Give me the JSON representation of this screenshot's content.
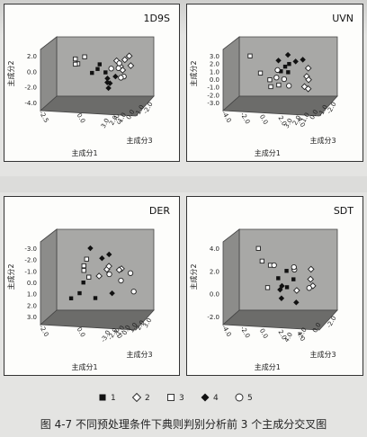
{
  "caption": "图 4-7   不同预处理条件下典则判别分析前 3 个主成分交叉图",
  "legend": [
    {
      "label": "1",
      "marker": "square-filled"
    },
    {
      "label": "2",
      "marker": "diamond-open"
    },
    {
      "label": "3",
      "marker": "square-open"
    },
    {
      "label": "4",
      "marker": "diamond-filled"
    },
    {
      "label": "5",
      "marker": "circle-open"
    }
  ],
  "chart_data": [
    {
      "type": "scatter",
      "title": "1D9S",
      "xlabel": "主成分1",
      "ylabel": "主成分2",
      "zlabel": "主成分3",
      "y_ticks": [
        "2.0",
        "0.0",
        "-2.0",
        "-4.0"
      ],
      "x_ticks": [
        "-2.5",
        "0.0",
        "2.5"
      ],
      "z_ticks": [
        "-2.0",
        "-1.0",
        "0.0",
        "1.0",
        "2.0",
        "3.0"
      ],
      "points": [
        {
          "g": 1,
          "x": -0.5,
          "y": 0.1,
          "z": 0.2
        },
        {
          "g": 1,
          "x": 0.2,
          "y": -0.3,
          "z": 0.5
        },
        {
          "g": 1,
          "x": 0.0,
          "y": 0.6,
          "z": -0.4
        },
        {
          "g": 1,
          "x": -1.0,
          "y": -0.5,
          "z": 0.0
        },
        {
          "g": 2,
          "x": 2.2,
          "y": 1.5,
          "z": 0.6
        },
        {
          "g": 2,
          "x": 2.6,
          "y": 0.8,
          "z": 1.1
        },
        {
          "g": 2,
          "x": 1.8,
          "y": 1.1,
          "z": -0.4
        },
        {
          "g": 2,
          "x": 2.9,
          "y": 1.9,
          "z": 0.1
        },
        {
          "g": 2,
          "x": 1.5,
          "y": 0.3,
          "z": 1.6
        },
        {
          "g": 2,
          "x": 2.4,
          "y": 0.2,
          "z": -0.8
        },
        {
          "g": 3,
          "x": -2.3,
          "y": 1.2,
          "z": -1.0
        },
        {
          "g": 3,
          "x": -1.8,
          "y": 0.4,
          "z": -1.5
        },
        {
          "g": 3,
          "x": -2.9,
          "y": 0.8,
          "z": 0.3
        },
        {
          "g": 3,
          "x": -1.5,
          "y": 1.6,
          "z": -0.6
        },
        {
          "g": 4,
          "x": 0.5,
          "y": -1.2,
          "z": 0.3
        },
        {
          "g": 4,
          "x": 1.0,
          "y": -2.0,
          "z": -0.2
        },
        {
          "g": 4,
          "x": 0.2,
          "y": -1.6,
          "z": 0.9
        },
        {
          "g": 4,
          "x": 1.3,
          "y": -0.9,
          "z": 0.4
        },
        {
          "g": 4,
          "x": 0.7,
          "y": -2.6,
          "z": 0.1
        },
        {
          "g": 5,
          "x": 1.6,
          "y": -0.2,
          "z": -1.2
        },
        {
          "g": 5,
          "x": 2.0,
          "y": -0.8,
          "z": 0.8
        },
        {
          "g": 5,
          "x": 1.2,
          "y": 0.5,
          "z": 1.3
        },
        {
          "g": 5,
          "x": 2.3,
          "y": -1.3,
          "z": -0.5
        },
        {
          "g": 5,
          "x": 1.8,
          "y": 0.9,
          "z": 0.2
        }
      ]
    },
    {
      "type": "scatter",
      "title": "UVN",
      "xlabel": "主成分1",
      "ylabel": "主成分2",
      "zlabel": "主成分3",
      "y_ticks": [
        "3.0",
        "2.0",
        "1.0",
        "0.0",
        "-1.0",
        "-2.0",
        "-3.0"
      ],
      "x_ticks": [
        "-4.0",
        "-2.0",
        "0.0",
        "2.0",
        "4.0"
      ],
      "z_ticks": [
        "-2.0",
        "-1.0",
        "0.0",
        "1.0",
        "2.0",
        "3.0"
      ],
      "points": [
        {
          "g": 1,
          "x": 0.5,
          "y": 0.8,
          "z": 0.1
        },
        {
          "g": 1,
          "x": 1.2,
          "y": 1.1,
          "z": -0.3
        },
        {
          "g": 1,
          "x": -0.3,
          "y": 0.2,
          "z": 0.6
        },
        {
          "g": 1,
          "x": 0.9,
          "y": -0.2,
          "z": 0.0
        },
        {
          "g": 2,
          "x": 2.5,
          "y": -0.6,
          "z": 0.8
        },
        {
          "g": 2,
          "x": 3.1,
          "y": -1.4,
          "z": 0.2
        },
        {
          "g": 2,
          "x": 2.0,
          "y": -2.2,
          "z": 1.2
        },
        {
          "g": 2,
          "x": 3.5,
          "y": 0.3,
          "z": -0.5
        },
        {
          "g": 2,
          "x": 2.8,
          "y": -2.8,
          "z": 0.6
        },
        {
          "g": 3,
          "x": -2.8,
          "y": 2.2,
          "z": -1.0
        },
        {
          "g": 3,
          "x": -1.5,
          "y": -1.3,
          "z": 0.5
        },
        {
          "g": 3,
          "x": -0.8,
          "y": -2.0,
          "z": 1.0
        },
        {
          "g": 3,
          "x": -2.0,
          "y": -0.5,
          "z": -0.4
        },
        {
          "g": 3,
          "x": -1.2,
          "y": -2.6,
          "z": 0.2
        },
        {
          "g": 4,
          "x": 1.0,
          "y": 2.7,
          "z": -0.2
        },
        {
          "g": 4,
          "x": 1.5,
          "y": 1.8,
          "z": 0.4
        },
        {
          "g": 4,
          "x": 0.3,
          "y": 1.5,
          "z": -0.8
        },
        {
          "g": 4,
          "x": 2.0,
          "y": 2.3,
          "z": 0.9
        },
        {
          "g": 5,
          "x": -0.5,
          "y": -0.8,
          "z": 1.5
        },
        {
          "g": 5,
          "x": 0.2,
          "y": -1.5,
          "z": -1.0
        },
        {
          "g": 5,
          "x": -1.0,
          "y": 0.6,
          "z": 1.1
        },
        {
          "g": 5,
          "x": 0.8,
          "y": -2.4,
          "z": 0.3
        }
      ]
    },
    {
      "type": "scatter",
      "title": "DER",
      "xlabel": "主成分1",
      "ylabel": "主成分2",
      "zlabel": "主成分3",
      "y_ticks": [
        "-3.0",
        "-2.0",
        "-1.0",
        "0.0",
        "1.0",
        "2.0",
        "3.0"
      ],
      "x_ticks": [
        "-2.0",
        "0.0",
        "2.0"
      ],
      "z_ticks": [
        "3.0",
        "2.0",
        "1.0",
        "0.0",
        "-1.0",
        "-2.0",
        "-3.0"
      ],
      "points": [
        {
          "g": 1,
          "x": -1.8,
          "y": -1.6,
          "z": 0.5
        },
        {
          "g": 1,
          "x": -1.2,
          "y": -0.8,
          "z": -0.3
        },
        {
          "g": 1,
          "x": -0.5,
          "y": -2.2,
          "z": 0.2
        },
        {
          "g": 1,
          "x": -2.0,
          "y": -2.5,
          "z": -0.6
        },
        {
          "g": 2,
          "x": 0.6,
          "y": 0.5,
          "z": -0.4
        },
        {
          "g": 2,
          "x": 1.3,
          "y": 0.9,
          "z": 0.6
        },
        {
          "g": 2,
          "x": 0.2,
          "y": 1.3,
          "z": 1.0
        },
        {
          "g": 2,
          "x": 1.8,
          "y": 0.2,
          "z": -1.1
        },
        {
          "g": 2,
          "x": -0.3,
          "y": 0.1,
          "z": 0.4
        },
        {
          "g": 3,
          "x": -1.0,
          "y": 1.6,
          "z": -0.2
        },
        {
          "g": 3,
          "x": -1.6,
          "y": 0.8,
          "z": 0.8
        },
        {
          "g": 3,
          "x": -0.4,
          "y": -0.6,
          "z": -1.3
        },
        {
          "g": 3,
          "x": -1.4,
          "y": 1.1,
          "z": 0.3
        },
        {
          "g": 4,
          "x": -0.6,
          "y": 2.6,
          "z": -0.5
        },
        {
          "g": 4,
          "x": -0.2,
          "y": 2.0,
          "z": 0.7
        },
        {
          "g": 4,
          "x": 1.0,
          "y": 1.8,
          "z": -1.0
        },
        {
          "g": 4,
          "x": 0.4,
          "y": -1.4,
          "z": 1.1
        },
        {
          "g": 5,
          "x": 1.5,
          "y": -0.5,
          "z": 0.0
        },
        {
          "g": 5,
          "x": 2.1,
          "y": -1.3,
          "z": 0.9
        },
        {
          "g": 5,
          "x": 0.9,
          "y": -0.1,
          "z": -0.7
        },
        {
          "g": 5,
          "x": 1.7,
          "y": 0.7,
          "z": 1.3
        }
      ]
    },
    {
      "type": "scatter",
      "title": "SDT",
      "xlabel": "主成分1",
      "ylabel": "主成分2",
      "zlabel": "主成分3",
      "y_ticks": [
        "4.0",
        "2.0",
        "0.0",
        "-2.0"
      ],
      "x_ticks": [
        "-4.0",
        "-2.0",
        "0.0",
        "2.0",
        "4.0"
      ],
      "z_ticks": [
        "-2.0",
        "0.0",
        "2.0",
        "4.0"
      ],
      "points": [
        {
          "g": 1,
          "x": -0.8,
          "y": 0.4,
          "z": 0.3
        },
        {
          "g": 1,
          "x": 0.5,
          "y": 0.9,
          "z": -0.5
        },
        {
          "g": 1,
          "x": -0.2,
          "y": -0.3,
          "z": 1.0
        },
        {
          "g": 1,
          "x": 1.0,
          "y": 0.2,
          "z": 0.0
        },
        {
          "g": 2,
          "x": 2.2,
          "y": 0.6,
          "z": 1.3
        },
        {
          "g": 2,
          "x": 3.0,
          "y": -0.4,
          "z": 0.2
        },
        {
          "g": 2,
          "x": 1.8,
          "y": -1.2,
          "z": -0.9
        },
        {
          "g": 2,
          "x": 2.6,
          "y": 1.4,
          "z": 0.6
        },
        {
          "g": 3,
          "x": -2.6,
          "y": 3.2,
          "z": -0.4
        },
        {
          "g": 3,
          "x": -1.8,
          "y": 1.8,
          "z": 0.6
        },
        {
          "g": 3,
          "x": -3.0,
          "y": 2.4,
          "z": 1.2
        },
        {
          "g": 3,
          "x": -1.2,
          "y": -1.0,
          "z": -1.2
        },
        {
          "g": 4,
          "x": -0.5,
          "y": -1.6,
          "z": 0.4
        },
        {
          "g": 4,
          "x": 0.3,
          "y": -0.8,
          "z": -1.1
        },
        {
          "g": 4,
          "x": -1.2,
          "y": -0.4,
          "z": 1.5
        },
        {
          "g": 4,
          "x": 0.9,
          "y": -1.9,
          "z": 0.8
        },
        {
          "g": 5,
          "x": 1.4,
          "y": 1.0,
          "z": -0.6
        },
        {
          "g": 5,
          "x": 0.6,
          "y": 1.7,
          "z": 0.9
        },
        {
          "g": 5,
          "x": 1.9,
          "y": -0.2,
          "z": 1.6
        },
        {
          "g": 5,
          "x": -0.4,
          "y": 1.2,
          "z": -1.4
        }
      ]
    }
  ]
}
